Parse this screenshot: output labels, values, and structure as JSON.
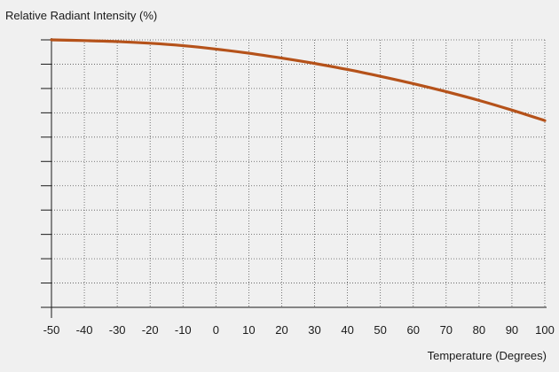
{
  "chart_data": {
    "type": "line",
    "ylabel": "Relative Radiant Intensity (%)",
    "xlabel": "Temperature (Degrees)",
    "xlim": [
      -50,
      100
    ],
    "ylim": [
      0,
      110
    ],
    "x_ticks": [
      "-50",
      "-40",
      "-30",
      "-20",
      "-10",
      "0",
      "10",
      "20",
      "30",
      "40",
      "50",
      "60",
      "70",
      "80",
      "90",
      "100"
    ],
    "y_gridlines": 11,
    "y_ticks_labeled": false,
    "grid": true,
    "grid_style": "dotted",
    "line_color": "#b5521a",
    "series": [
      {
        "x": [
          -50,
          -40,
          -30,
          -20,
          -10,
          0,
          10,
          20,
          30,
          40,
          50,
          60,
          70,
          80,
          90,
          100
        ],
        "y": [
          110,
          109.7,
          109.3,
          108.6,
          107.6,
          106.2,
          104.5,
          102.5,
          100.3,
          97.8,
          95.0,
          92.0,
          88.7,
          85.1,
          81.1,
          76.8
        ]
      }
    ]
  }
}
